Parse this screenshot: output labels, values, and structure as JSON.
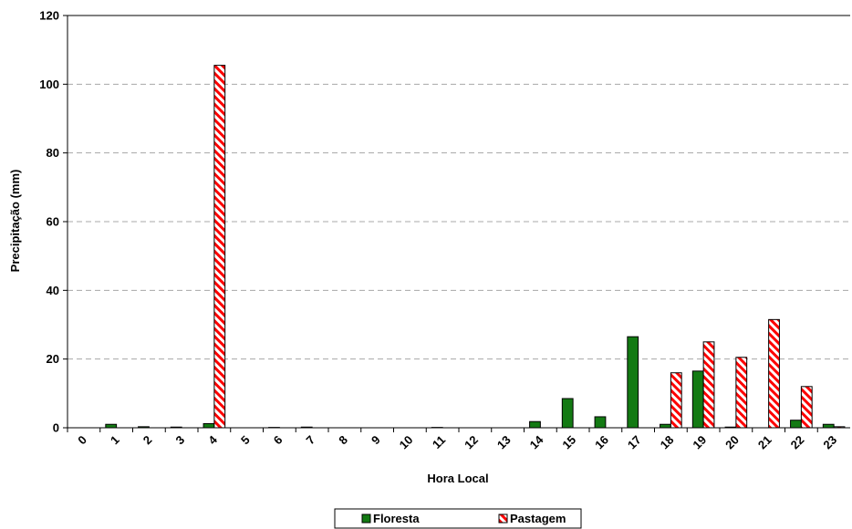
{
  "chart_data": {
    "type": "bar",
    "title": "",
    "xlabel": "Hora Local",
    "ylabel": "Precipitação (mm)",
    "ylim": [
      0,
      120
    ],
    "yticks": [
      "0",
      "20",
      "40",
      "60",
      "80",
      "100",
      "120"
    ],
    "grid": "horizontal dashed",
    "legend_position": "bottom",
    "categories": [
      "0",
      "1",
      "2",
      "3",
      "4",
      "5",
      "6",
      "7",
      "8",
      "9",
      "10",
      "11",
      "12",
      "13",
      "14",
      "15",
      "16",
      "17",
      "18",
      "19",
      "20",
      "21",
      "22",
      "23"
    ],
    "series": [
      {
        "name": "Floresta",
        "color": "#137a13",
        "pattern": "solid",
        "values": [
          0,
          1.0,
          0.3,
          0.2,
          1.2,
          0,
          0.1,
          0.2,
          0,
          0,
          0,
          0.1,
          0,
          0,
          1.8,
          8.5,
          3.2,
          26.5,
          1.0,
          16.5,
          0.2,
          0,
          2.2,
          1.0
        ]
      },
      {
        "name": "Pastagem",
        "color": "#ff0000",
        "pattern": "diagonal-stripes",
        "values": [
          0,
          0,
          0,
          0,
          105.5,
          0,
          0,
          0,
          0,
          0,
          0,
          0,
          0,
          0,
          0,
          0,
          0,
          0,
          16.0,
          25.0,
          20.5,
          31.5,
          12.0,
          0.3
        ]
      }
    ]
  }
}
